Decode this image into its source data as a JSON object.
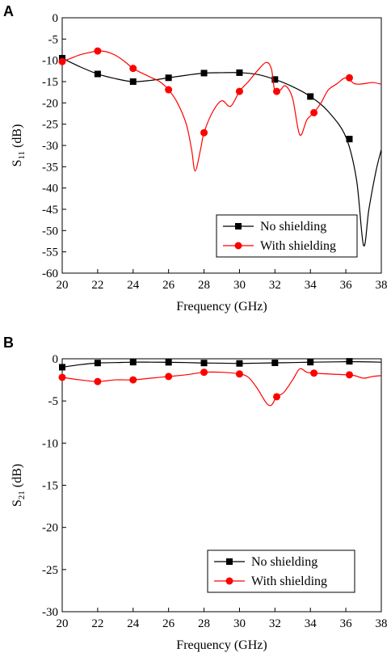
{
  "chart_data": [
    {
      "type": "line",
      "panel_label": "A",
      "xlabel": "Frequency (GHz)",
      "ylabel_main": "S",
      "ylabel_sub": "11",
      "ylabel_unit": " (dB)",
      "xlim": [
        20,
        38
      ],
      "ylim": [
        -60,
        0
      ],
      "xticks": [
        20,
        22,
        24,
        26,
        28,
        30,
        32,
        34,
        36,
        38
      ],
      "yticks": [
        0,
        -5,
        -10,
        -15,
        -20,
        -25,
        -30,
        -35,
        -40,
        -45,
        -50,
        -55,
        -60
      ],
      "legend_position": "bottom-right",
      "series": [
        {
          "name": "No shielding",
          "color": "#000000",
          "marker": "square",
          "curve": [
            [
              20,
              -9.5
            ],
            [
              21,
              -11.5
            ],
            [
              22,
              -13.2
            ],
            [
              23,
              -14.3
            ],
            [
              24,
              -15
            ],
            [
              25,
              -14.7
            ],
            [
              26,
              -14.1
            ],
            [
              27,
              -13.5
            ],
            [
              28,
              -13
            ],
            [
              29,
              -12.9
            ],
            [
              30,
              -12.9
            ],
            [
              31,
              -13.3
            ],
            [
              32,
              -14.5
            ],
            [
              33,
              -16.2
            ],
            [
              34,
              -18.5
            ],
            [
              35,
              -22
            ],
            [
              36,
              -28
            ],
            [
              36.6,
              -38
            ],
            [
              37,
              -53.5
            ],
            [
              37.3,
              -45
            ],
            [
              37.7,
              -36
            ],
            [
              38,
              -31
            ]
          ],
          "markers": [
            [
              20,
              -9.5
            ],
            [
              22,
              -13.2
            ],
            [
              24,
              -15
            ],
            [
              26,
              -14.1
            ],
            [
              28,
              -13
            ],
            [
              30,
              -12.9
            ],
            [
              32,
              -14.5
            ],
            [
              34,
              -18.5
            ],
            [
              36.2,
              -28.5
            ]
          ]
        },
        {
          "name": "With shielding",
          "color": "#ff0000",
          "marker": "circle",
          "curve": [
            [
              20,
              -10.3
            ],
            [
              20.5,
              -9.5
            ],
            [
              21,
              -8.7
            ],
            [
              21.5,
              -8.2
            ],
            [
              22,
              -7.8
            ],
            [
              22.5,
              -8
            ],
            [
              23,
              -8.8
            ],
            [
              23.5,
              -10.2
            ],
            [
              24,
              -11.9
            ],
            [
              24.5,
              -13
            ],
            [
              25,
              -14
            ],
            [
              25.5,
              -15
            ],
            [
              26,
              -16.9
            ],
            [
              26.5,
              -20
            ],
            [
              27,
              -25
            ],
            [
              27.3,
              -31
            ],
            [
              27.5,
              -36
            ],
            [
              27.8,
              -31
            ],
            [
              28,
              -27
            ],
            [
              28.5,
              -22
            ],
            [
              29,
              -19.5
            ],
            [
              29.5,
              -20.8
            ],
            [
              30,
              -17.3
            ],
            [
              30.5,
              -15
            ],
            [
              31,
              -12.5
            ],
            [
              31.5,
              -10.5
            ],
            [
              31.8,
              -12
            ],
            [
              32,
              -17.3
            ],
            [
              32.3,
              -17
            ],
            [
              32.6,
              -16
            ],
            [
              33,
              -19
            ],
            [
              33.4,
              -27.5
            ],
            [
              33.8,
              -24
            ],
            [
              34.2,
              -22.3
            ],
            [
              34.6,
              -20
            ],
            [
              35,
              -17
            ],
            [
              35.5,
              -15.5
            ],
            [
              36,
              -14.1
            ],
            [
              36.5,
              -15.5
            ],
            [
              37,
              -15.5
            ],
            [
              37.5,
              -15.2
            ],
            [
              38,
              -15.6
            ]
          ],
          "markers": [
            [
              20,
              -10.3
            ],
            [
              22,
              -7.8
            ],
            [
              24,
              -11.9
            ],
            [
              26,
              -16.9
            ],
            [
              28,
              -27
            ],
            [
              30,
              -17.3
            ],
            [
              32.1,
              -17.3
            ],
            [
              34.2,
              -22.3
            ],
            [
              36.2,
              -14.1
            ]
          ]
        }
      ]
    },
    {
      "type": "line",
      "panel_label": "B",
      "xlabel": "Frequency (GHz)",
      "ylabel_main": "S",
      "ylabel_sub": "21",
      "ylabel_unit": " (dB)",
      "xlim": [
        20,
        38
      ],
      "ylim": [
        -30,
        0
      ],
      "xticks": [
        20,
        22,
        24,
        26,
        28,
        30,
        32,
        34,
        36,
        38
      ],
      "yticks": [
        0,
        -5,
        -10,
        -15,
        -20,
        -25,
        -30
      ],
      "legend_position": "bottom-right",
      "series": [
        {
          "name": "No shielding",
          "color": "#000000",
          "marker": "square",
          "curve": [
            [
              20,
              -1
            ],
            [
              21,
              -0.7
            ],
            [
              22,
              -0.5
            ],
            [
              23,
              -0.45
            ],
            [
              24,
              -0.4
            ],
            [
              25,
              -0.4
            ],
            [
              26,
              -0.42
            ],
            [
              27,
              -0.45
            ],
            [
              28,
              -0.5
            ],
            [
              29,
              -0.52
            ],
            [
              30,
              -0.55
            ],
            [
              31,
              -0.52
            ],
            [
              32,
              -0.48
            ],
            [
              33,
              -0.45
            ],
            [
              34,
              -0.4
            ],
            [
              35,
              -0.38
            ],
            [
              36,
              -0.35
            ],
            [
              37,
              -0.36
            ],
            [
              38,
              -0.4
            ]
          ],
          "markers": [
            [
              20,
              -1
            ],
            [
              22,
              -0.5
            ],
            [
              24,
              -0.4
            ],
            [
              26,
              -0.42
            ],
            [
              28,
              -0.5
            ],
            [
              30,
              -0.55
            ],
            [
              32,
              -0.48
            ],
            [
              34,
              -0.4
            ],
            [
              36.2,
              -0.3
            ]
          ]
        },
        {
          "name": "With shielding",
          "color": "#ff0000",
          "marker": "circle",
          "curve": [
            [
              20,
              -2.2
            ],
            [
              21,
              -2.5
            ],
            [
              22,
              -2.7
            ],
            [
              23,
              -2.5
            ],
            [
              24,
              -2.5
            ],
            [
              25,
              -2.3
            ],
            [
              26,
              -2.1
            ],
            [
              27,
              -1.9
            ],
            [
              28,
              -1.6
            ],
            [
              29,
              -1.6
            ],
            [
              30,
              -1.8
            ],
            [
              30.5,
              -2.2
            ],
            [
              31,
              -3.5
            ],
            [
              31.5,
              -5.2
            ],
            [
              31.8,
              -5.5
            ],
            [
              32.1,
              -4.5
            ],
            [
              32.5,
              -4
            ],
            [
              33,
              -2.5
            ],
            [
              33.4,
              -1.2
            ],
            [
              33.8,
              -1.6
            ],
            [
              34.2,
              -1.7
            ],
            [
              35,
              -1.8
            ],
            [
              36,
              -1.9
            ],
            [
              36.5,
              -2
            ],
            [
              37,
              -2.3
            ],
            [
              37.5,
              -2.1
            ],
            [
              38,
              -2
            ]
          ],
          "markers": [
            [
              20,
              -2.2
            ],
            [
              22,
              -2.7
            ],
            [
              24,
              -2.5
            ],
            [
              26,
              -2.1
            ],
            [
              28,
              -1.6
            ],
            [
              30,
              -1.8
            ],
            [
              32.1,
              -4.5
            ],
            [
              34.2,
              -1.7
            ],
            [
              36.2,
              -1.9
            ]
          ]
        }
      ]
    }
  ]
}
